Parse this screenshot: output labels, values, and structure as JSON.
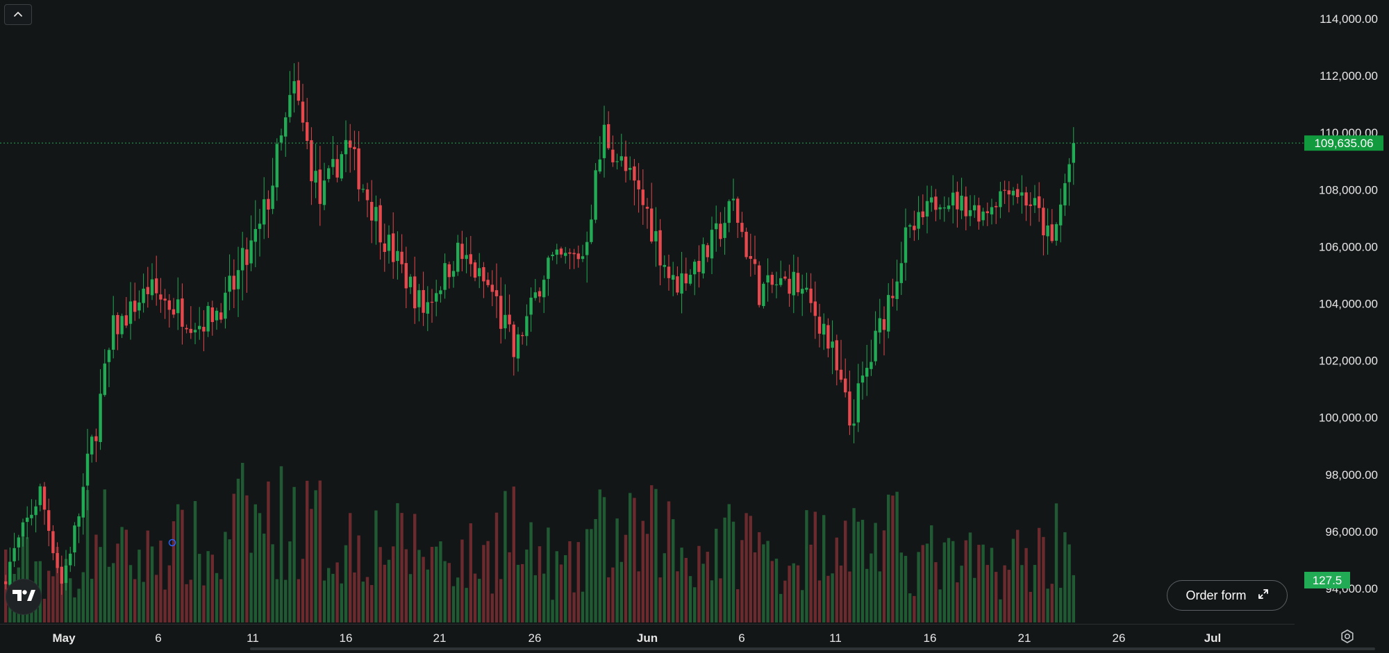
{
  "chart_data": {
    "type": "candlestick",
    "y_axis": {
      "ticks": [
        "114,000.00",
        "112,000.00",
        "110,000.00",
        "108,000.00",
        "106,000.00",
        "104,000.00",
        "102,000.00",
        "100,000.00",
        "98,000.00",
        "96,000.00",
        "94,000.00"
      ],
      "range": [
        93100,
        114600
      ],
      "position": "right"
    },
    "x_axis": {
      "ticks": [
        "May",
        "6",
        "11",
        "16",
        "21",
        "26",
        "Jun",
        "6",
        "11",
        "16",
        "21",
        "26",
        "Jul"
      ],
      "bold_ticks": [
        "May",
        "Jun",
        "Jul"
      ]
    },
    "last_price_label": "109,635.06",
    "last_price": 109635.06,
    "last_volume_label": "127.5",
    "colors": {
      "up": "#22ab55",
      "down": "#e5484d",
      "up_volume": "#1f5a33",
      "down_volume": "#6b2a2d",
      "price_line": "#22ab55",
      "background": "#131617",
      "axis_text": "#e6e6e6"
    },
    "segments": [
      {
        "days": 9,
        "start": 94200,
        "end": 97400,
        "vol": 0.9
      },
      {
        "days": 5,
        "start": 97400,
        "end": 94200,
        "vol": 0.8
      },
      {
        "days": 4,
        "start": 94200,
        "end": 96600,
        "vol": 0.8
      },
      {
        "days": 8,
        "start": 96600,
        "end": 103000,
        "vol": 1.4
      },
      {
        "days": 8,
        "start": 103000,
        "end": 104500,
        "vol": 1.0
      },
      {
        "days": 12,
        "start": 104500,
        "end": 103300,
        "vol": 1.2
      },
      {
        "days": 6,
        "start": 103300,
        "end": 104000,
        "vol": 1.0
      },
      {
        "days": 8,
        "start": 104000,
        "end": 106500,
        "vol": 1.6
      },
      {
        "days": 8,
        "start": 106500,
        "end": 111500,
        "vol": 1.6
      },
      {
        "days": 6,
        "start": 111500,
        "end": 107600,
        "vol": 1.5
      },
      {
        "days": 6,
        "start": 107600,
        "end": 109600,
        "vol": 1.2
      },
      {
        "days": 10,
        "start": 109600,
        "end": 106000,
        "vol": 1.3
      },
      {
        "days": 8,
        "start": 106000,
        "end": 103800,
        "vol": 1.2
      },
      {
        "days": 8,
        "start": 103800,
        "end": 105800,
        "vol": 1.1
      },
      {
        "days": 8,
        "start": 105800,
        "end": 104400,
        "vol": 1.0
      },
      {
        "days": 5,
        "start": 104400,
        "end": 102200,
        "vol": 1.6
      },
      {
        "days": 8,
        "start": 102200,
        "end": 105500,
        "vol": 1.0
      },
      {
        "days": 8,
        "start": 105500,
        "end": 105700,
        "vol": 0.8
      },
      {
        "days": 5,
        "start": 105700,
        "end": 110000,
        "vol": 1.4
      },
      {
        "days": 10,
        "start": 110000,
        "end": 107200,
        "vol": 1.3
      },
      {
        "days": 6,
        "start": 107200,
        "end": 104600,
        "vol": 1.4
      },
      {
        "days": 8,
        "start": 104600,
        "end": 105800,
        "vol": 1.1
      },
      {
        "days": 6,
        "start": 105800,
        "end": 107500,
        "vol": 1.2
      },
      {
        "days": 6,
        "start": 107500,
        "end": 104500,
        "vol": 1.3
      },
      {
        "days": 8,
        "start": 104500,
        "end": 104800,
        "vol": 1.0
      },
      {
        "days": 7,
        "start": 104800,
        "end": 103200,
        "vol": 1.2
      },
      {
        "days": 6,
        "start": 103200,
        "end": 99800,
        "vol": 1.6
      },
      {
        "days": 5,
        "start": 99800,
        "end": 102100,
        "vol": 1.3
      },
      {
        "days": 8,
        "start": 102100,
        "end": 106200,
        "vol": 1.3
      },
      {
        "days": 8,
        "start": 106200,
        "end": 107800,
        "vol": 1.0
      },
      {
        "days": 10,
        "start": 107800,
        "end": 107200,
        "vol": 0.9
      },
      {
        "days": 6,
        "start": 107200,
        "end": 108200,
        "vol": 0.9
      },
      {
        "days": 6,
        "start": 108200,
        "end": 107400,
        "vol": 1.0
      },
      {
        "days": 4,
        "start": 107400,
        "end": 106000,
        "vol": 1.1
      },
      {
        "days": 5,
        "start": 106000,
        "end": 109600,
        "vol": 1.3
      }
    ]
  },
  "ui": {
    "order_form_label": "Order form",
    "icons": {
      "collapse": "chevron-up-icon",
      "order_form_expand": "expand-arrows-icon",
      "logo": "tradingview-logo-icon",
      "settings": "settings-gear-icon"
    }
  }
}
